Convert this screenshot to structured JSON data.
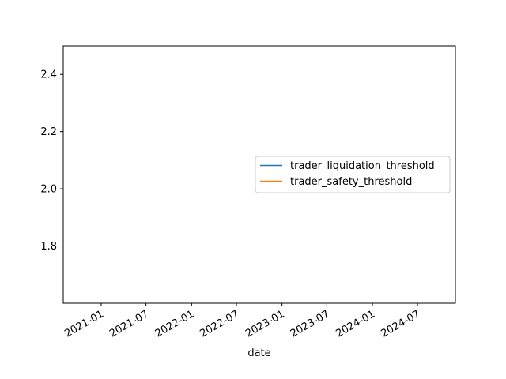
{
  "chart_data": {
    "type": "line",
    "title": "",
    "xlabel": "date",
    "ylabel": "",
    "x_axis_type": "date",
    "xlim": [
      "2020-08-01",
      "2024-12-01"
    ],
    "ylim": [
      1.6,
      2.5
    ],
    "x_ticks": [
      {
        "date": "2021-01-01",
        "label": "2021-01"
      },
      {
        "date": "2021-07-01",
        "label": "2021-07"
      },
      {
        "date": "2022-01-01",
        "label": "2022-01"
      },
      {
        "date": "2022-07-01",
        "label": "2022-07"
      },
      {
        "date": "2023-01-01",
        "label": "2023-01"
      },
      {
        "date": "2023-07-01",
        "label": "2023-07"
      },
      {
        "date": "2024-01-01",
        "label": "2024-01"
      },
      {
        "date": "2024-07-01",
        "label": "2024-07"
      }
    ],
    "y_ticks": [
      {
        "value": 1.8,
        "label": "1.8"
      },
      {
        "value": 2.0,
        "label": "2.0"
      },
      {
        "value": 2.2,
        "label": "2.2"
      },
      {
        "value": 2.4,
        "label": "2.4"
      }
    ],
    "grid": false,
    "legend_position": "center-right",
    "series": [
      {
        "name": "trader_liquidation_threshold",
        "color": "#1f77b4",
        "x": [],
        "values": []
      },
      {
        "name": "trader_safety_threshold",
        "color": "#ff7f0e",
        "x": [],
        "values": []
      }
    ]
  }
}
